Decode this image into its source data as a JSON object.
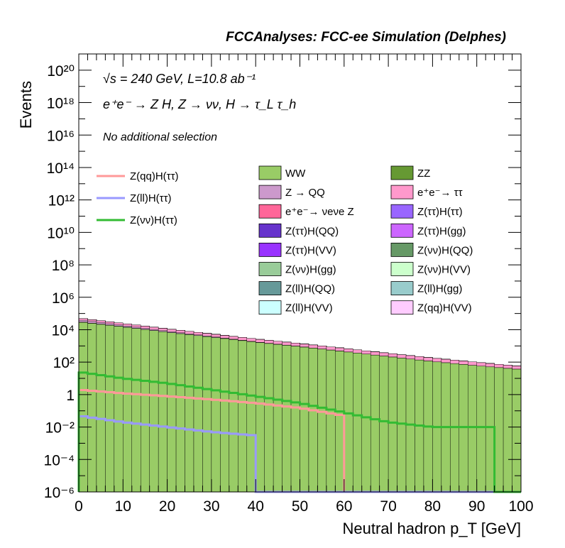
{
  "header": {
    "title": "FCCAnalyses: FCC-ee Simulation (Delphes)",
    "energy_label": "√s = 240 GeV, L=10.8 ab⁻¹",
    "process_label": "e⁺e⁻ → Z H, Z → νν, H → τ_L τ_h",
    "selection_label": "No additional selection"
  },
  "chart_data": {
    "type": "bar",
    "stacked": true,
    "xlabel": "Neutral hadron p_T [GeV]",
    "ylabel": "Events",
    "xlim": [
      0,
      100
    ],
    "ylim": [
      1e-06,
      1e+21
    ],
    "ylog": true,
    "x_ticks": [
      0,
      10,
      20,
      30,
      40,
      50,
      60,
      70,
      80,
      90,
      100
    ],
    "y_ticks": [
      {
        "value": 1e-06,
        "label": "10⁻⁶"
      },
      {
        "value": 0.0001,
        "label": "10⁻⁴"
      },
      {
        "value": 0.01,
        "label": "10⁻²"
      },
      {
        "value": 1,
        "label": "1"
      },
      {
        "value": 100.0,
        "label": "10²"
      },
      {
        "value": 10000.0,
        "label": "10⁴"
      },
      {
        "value": 1000000.0,
        "label": "10⁶"
      },
      {
        "value": 100000000.0,
        "label": "10⁸"
      },
      {
        "value": 10000000000.0,
        "label": "10¹⁰"
      },
      {
        "value": 1000000000000.0,
        "label": "10¹²"
      },
      {
        "value": 100000000000000.0,
        "label": "10¹⁴"
      },
      {
        "value": 1e+16,
        "label": "10¹⁶"
      },
      {
        "value": 1e+18,
        "label": "10¹⁸"
      },
      {
        "value": 1e+20,
        "label": "10²⁰"
      }
    ],
    "bin_width": 2,
    "stack_series": [
      {
        "name": "WW",
        "color": "#99cc66",
        "points": [
          [
            0,
            30000.0
          ],
          [
            10,
            15000.0
          ],
          [
            20,
            7000.0
          ],
          [
            30,
            3500.0
          ],
          [
            40,
            1700.0
          ],
          [
            50,
            900
          ],
          [
            60,
            450
          ],
          [
            70,
            220
          ],
          [
            80,
            110
          ],
          [
            90,
            60
          ],
          [
            100,
            35
          ]
        ]
      },
      {
        "name": "ZZ",
        "color": "#669933",
        "points": [
          [
            0,
            2000.0
          ],
          [
            10,
            500
          ],
          [
            20,
            120
          ],
          [
            30,
            30
          ],
          [
            40,
            8
          ],
          [
            50,
            2
          ],
          [
            60,
            0.5
          ],
          [
            70,
            0.1
          ],
          [
            74,
            0.05
          ]
        ]
      },
      {
        "name": "Z → QQ",
        "color": "#cc99cc",
        "points": [
          [
            0,
            10000.0
          ],
          [
            10,
            3000.0
          ],
          [
            20,
            1000.0
          ],
          [
            30,
            300
          ],
          [
            40,
            80
          ],
          [
            50,
            25
          ],
          [
            60,
            8
          ],
          [
            70,
            2
          ],
          [
            80,
            0.6
          ],
          [
            90,
            0.2
          ],
          [
            100,
            0.05
          ]
        ]
      },
      {
        "name": "e⁺e⁻→ ττ",
        "color": "#ff99cc",
        "points": [
          [
            0,
            10000.0
          ],
          [
            10,
            6000.0
          ],
          [
            20,
            3200.0
          ],
          [
            30,
            1700.0
          ],
          [
            40,
            900
          ],
          [
            50,
            480
          ],
          [
            60,
            250
          ],
          [
            70,
            130
          ],
          [
            80,
            70
          ],
          [
            90,
            38
          ],
          [
            100,
            20
          ]
        ]
      },
      {
        "name": "e⁺e⁻→ νeνe Z",
        "color": "#ff6699",
        "points": [
          [
            0,
            6
          ],
          [
            10,
            5
          ],
          [
            20,
            3
          ],
          [
            30,
            1.8
          ],
          [
            40,
            1
          ],
          [
            50,
            0.4
          ],
          [
            58,
            0.2
          ]
        ]
      },
      {
        "name": "Z(ττ)H(ττ)",
        "color": "#9966ff",
        "points": [
          [
            0,
            1.5
          ],
          [
            10,
            0.5
          ],
          [
            20,
            0.3
          ],
          [
            30,
            0.25
          ],
          [
            40,
            0.15
          ],
          [
            50,
            0.1
          ],
          [
            56,
            0.05
          ]
        ]
      },
      {
        "name": "Z(ττ)H(QQ)",
        "color": "#6633cc",
        "points": [
          [
            0,
            1
          ],
          [
            10,
            0.1
          ],
          [
            20,
            0.01
          ],
          [
            30,
            0.002
          ]
        ]
      },
      {
        "name": "Z(ττ)H(gg)",
        "color": "#cc66ff",
        "points": [
          [
            0,
            0.5
          ],
          [
            10,
            0.05
          ],
          [
            20,
            0.01
          ],
          [
            30,
            0.002
          ]
        ]
      },
      {
        "name": "Z(ττ)H(VV)",
        "color": "#9933ff",
        "points": [
          [
            0,
            0.5
          ],
          [
            10,
            0.05
          ],
          [
            20,
            0.005
          ]
        ]
      },
      {
        "name": "Z(νν)H(QQ)",
        "color": "#669966",
        "points": [
          [
            0,
            20
          ],
          [
            10,
            4
          ],
          [
            20,
            1
          ],
          [
            30,
            0.2
          ],
          [
            40,
            0.05
          ],
          [
            50,
            0.01
          ]
        ]
      },
      {
        "name": "Z(νν)H(gg)",
        "color": "#99cc99",
        "points": [
          [
            0,
            2
          ],
          [
            10,
            0.3
          ],
          [
            20,
            0.05
          ],
          [
            30,
            0.01
          ]
        ]
      },
      {
        "name": "Z(νν)H(VV)",
        "color": "#ccffcc",
        "points": [
          [
            0,
            50
          ],
          [
            10,
            12
          ],
          [
            20,
            4
          ],
          [
            30,
            1.5
          ],
          [
            40,
            0.6
          ],
          [
            50,
            0.2
          ],
          [
            60,
            0.05
          ],
          [
            70,
            0.02
          ]
        ]
      },
      {
        "name": "Z(ll)H(QQ)",
        "color": "#669999",
        "points": [
          [
            0,
            1
          ],
          [
            10,
            0.1
          ],
          [
            20,
            0.01
          ]
        ]
      },
      {
        "name": "Z(ll)H(gg)",
        "color": "#99cccc",
        "points": [
          [
            0,
            0.5
          ],
          [
            10,
            0.05
          ],
          [
            20,
            0.005
          ]
        ]
      },
      {
        "name": "Z(ll)H(VV)",
        "color": "#ccffff",
        "points": [
          [
            0,
            0.3
          ],
          [
            10,
            0.1
          ],
          [
            20,
            0.02
          ],
          [
            30,
            0.005
          ],
          [
            40,
            0.002
          ]
        ]
      },
      {
        "name": "Z(qq)H(VV)",
        "color": "#ffccff",
        "points": [
          [
            0,
            0.2
          ],
          [
            10,
            0.02
          ]
        ]
      }
    ],
    "signal_series": [
      {
        "name": "Z(qq)H(ττ)",
        "color": "#ff9999",
        "points": [
          [
            0,
            2
          ],
          [
            10,
            1.2
          ],
          [
            20,
            0.8
          ],
          [
            30,
            0.5
          ],
          [
            40,
            0.3
          ],
          [
            50,
            0.15
          ],
          [
            60,
            0.05
          ]
        ]
      },
      {
        "name": "Z(ll)H(ττ)",
        "color": "#9999ff",
        "points": [
          [
            0,
            0.05
          ],
          [
            10,
            0.02
          ],
          [
            20,
            0.01
          ],
          [
            30,
            0.005
          ],
          [
            40,
            0.003
          ]
        ]
      },
      {
        "name": "Z(νν)H(ττ)",
        "color": "#33bb33",
        "points": [
          [
            0,
            25
          ],
          [
            10,
            10
          ],
          [
            20,
            5
          ],
          [
            30,
            2
          ],
          [
            40,
            0.8
          ],
          [
            50,
            0.3
          ],
          [
            60,
            0.08
          ],
          [
            70,
            0.02
          ],
          [
            80,
            0.01
          ],
          [
            90,
            0.01
          ],
          [
            94,
            0.01
          ]
        ]
      }
    ]
  }
}
